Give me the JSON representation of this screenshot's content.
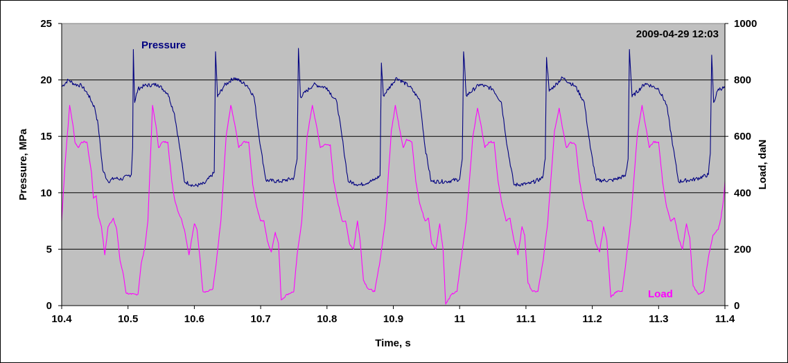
{
  "chart_data": {
    "type": "line",
    "timestamp": "2009-04-29 12:03",
    "xlabel": "Time, s",
    "ylabel_left": "Pressure, MPa",
    "ylabel_right": "Load, daN",
    "xlim": [
      10.4,
      11.4
    ],
    "ylim_left": [
      0,
      25
    ],
    "ylim_right": [
      0,
      1000
    ],
    "x_ticks": [
      "10.4",
      "10.5",
      "10.6",
      "10.7",
      "10.8",
      "10.9",
      "11",
      "11.1",
      "11.2",
      "11.3",
      "11.4"
    ],
    "y_left_ticks": [
      "0",
      "5",
      "10",
      "15",
      "20",
      "25"
    ],
    "y_right_ticks": [
      "0",
      "200",
      "400",
      "600",
      "800",
      "1000"
    ],
    "grid": "horizontal",
    "plot_background": "#c0c0c0",
    "series": [
      {
        "name": "Pressure",
        "axis": "left",
        "color": "#000080",
        "cycle_period_s": 0.1245,
        "points": [
          [
            10.4,
            19.4
          ],
          [
            10.41,
            20.0
          ],
          [
            10.42,
            19.6
          ],
          [
            10.43,
            19.5
          ],
          [
            10.44,
            18.7
          ],
          [
            10.45,
            17.5
          ],
          [
            10.455,
            16.0
          ],
          [
            10.462,
            12.0
          ],
          [
            10.47,
            11.0
          ],
          [
            10.48,
            11.3
          ],
          [
            10.49,
            11.2
          ],
          [
            10.5,
            11.5
          ],
          [
            10.505,
            11.6
          ],
          [
            10.507,
            14.0
          ],
          [
            10.508,
            22.7
          ],
          [
            10.51,
            18.0
          ],
          [
            10.515,
            19.2
          ],
          [
            10.525,
            19.5
          ],
          [
            10.545,
            19.6
          ],
          [
            10.56,
            18.8
          ],
          [
            10.57,
            17.0
          ],
          [
            10.578,
            14.0
          ],
          [
            10.585,
            11.0
          ],
          [
            10.6,
            10.6
          ],
          [
            10.615,
            10.8
          ],
          [
            10.63,
            11.8
          ],
          [
            10.632,
            22.5
          ],
          [
            10.635,
            18.5
          ],
          [
            10.645,
            19.5
          ],
          [
            10.66,
            20.2
          ],
          [
            10.68,
            19.5
          ],
          [
            10.69,
            18.5
          ],
          [
            10.7,
            14.0
          ],
          [
            10.708,
            11.1
          ],
          [
            10.73,
            11.0
          ],
          [
            10.75,
            11.3
          ],
          [
            10.755,
            13.0
          ],
          [
            10.757,
            22.8
          ],
          [
            10.76,
            18.5
          ],
          [
            10.78,
            19.6
          ],
          [
            10.8,
            19.3
          ],
          [
            10.815,
            18.0
          ],
          [
            10.825,
            14.0
          ],
          [
            10.832,
            11.0
          ],
          [
            10.85,
            10.7
          ],
          [
            10.87,
            11.1
          ],
          [
            10.88,
            11.5
          ],
          [
            10.882,
            21.5
          ],
          [
            10.885,
            18.6
          ],
          [
            10.905,
            20.2
          ],
          [
            10.925,
            19.4
          ],
          [
            10.94,
            18.2
          ],
          [
            10.948,
            14.0
          ],
          [
            10.957,
            11.0
          ],
          [
            10.98,
            11.0
          ],
          [
            11.0,
            11.2
          ],
          [
            11.004,
            13.0
          ],
          [
            11.006,
            22.5
          ],
          [
            11.01,
            18.6
          ],
          [
            11.03,
            19.6
          ],
          [
            11.05,
            19.2
          ],
          [
            11.063,
            18.0
          ],
          [
            11.072,
            14.0
          ],
          [
            11.082,
            10.7
          ],
          [
            11.105,
            10.8
          ],
          [
            11.125,
            11.3
          ],
          [
            11.129,
            13.0
          ],
          [
            11.131,
            22.0
          ],
          [
            11.135,
            19.0
          ],
          [
            11.155,
            20.2
          ],
          [
            11.175,
            19.4
          ],
          [
            11.188,
            18.0
          ],
          [
            11.197,
            14.0
          ],
          [
            11.206,
            11.1
          ],
          [
            11.23,
            11.1
          ],
          [
            11.25,
            11.5
          ],
          [
            11.254,
            13.0
          ],
          [
            11.256,
            22.7
          ],
          [
            11.26,
            18.5
          ],
          [
            11.28,
            19.7
          ],
          [
            11.3,
            19.2
          ],
          [
            11.312,
            17.8
          ],
          [
            11.322,
            14.0
          ],
          [
            11.33,
            11.0
          ],
          [
            11.355,
            11.2
          ],
          [
            11.375,
            11.6
          ],
          [
            11.378,
            13.5
          ],
          [
            11.38,
            22.2
          ],
          [
            11.383,
            18.0
          ],
          [
            11.39,
            19.2
          ],
          [
            11.4,
            19.3
          ]
        ]
      },
      {
        "name": "Load",
        "axis": "right",
        "color": "#ff00ff",
        "cycle_period_s": 0.1245,
        "points": [
          [
            10.4,
            300
          ],
          [
            10.405,
            500
          ],
          [
            10.412,
            710
          ],
          [
            10.417,
            640
          ],
          [
            10.42,
            580
          ],
          [
            10.425,
            560
          ],
          [
            10.43,
            580
          ],
          [
            10.438,
            580
          ],
          [
            10.445,
            470
          ],
          [
            10.448,
            380
          ],
          [
            10.452,
            390
          ],
          [
            10.455,
            320
          ],
          [
            10.46,
            280
          ],
          [
            10.465,
            180
          ],
          [
            10.47,
            280
          ],
          [
            10.478,
            310
          ],
          [
            10.483,
            270
          ],
          [
            10.488,
            160
          ],
          [
            10.493,
            110
          ],
          [
            10.497,
            45
          ],
          [
            10.505,
            40
          ],
          [
            10.515,
            40
          ],
          [
            10.52,
            150
          ],
          [
            10.525,
            200
          ],
          [
            10.53,
            300
          ],
          [
            10.537,
            710
          ],
          [
            10.542,
            640
          ],
          [
            10.546,
            560
          ],
          [
            10.552,
            580
          ],
          [
            10.56,
            580
          ],
          [
            10.566,
            440
          ],
          [
            10.57,
            380
          ],
          [
            10.576,
            330
          ],
          [
            10.58,
            310
          ],
          [
            10.585,
            270
          ],
          [
            10.592,
            180
          ],
          [
            10.6,
            290
          ],
          [
            10.604,
            270
          ],
          [
            10.608,
            180
          ],
          [
            10.613,
            50
          ],
          [
            10.62,
            50
          ],
          [
            10.628,
            60
          ],
          [
            10.633,
            150
          ],
          [
            10.64,
            300
          ],
          [
            10.648,
            600
          ],
          [
            10.655,
            710
          ],
          [
            10.662,
            630
          ],
          [
            10.667,
            560
          ],
          [
            10.674,
            580
          ],
          [
            10.682,
            580
          ],
          [
            10.688,
            430
          ],
          [
            10.694,
            350
          ],
          [
            10.7,
            300
          ],
          [
            10.705,
            300
          ],
          [
            10.71,
            230
          ],
          [
            10.716,
            190
          ],
          [
            10.722,
            260
          ],
          [
            10.727,
            220
          ],
          [
            10.731,
            20
          ],
          [
            10.74,
            40
          ],
          [
            10.75,
            50
          ],
          [
            10.755,
            180
          ],
          [
            10.762,
            300
          ],
          [
            10.77,
            600
          ],
          [
            10.778,
            710
          ],
          [
            10.784,
            640
          ],
          [
            10.79,
            560
          ],
          [
            10.796,
            570
          ],
          [
            10.805,
            570
          ],
          [
            10.81,
            440
          ],
          [
            10.816,
            370
          ],
          [
            10.823,
            300
          ],
          [
            10.828,
            300
          ],
          [
            10.834,
            220
          ],
          [
            10.84,
            200
          ],
          [
            10.846,
            300
          ],
          [
            10.85,
            230
          ],
          [
            10.855,
            90
          ],
          [
            10.862,
            60
          ],
          [
            10.872,
            50
          ],
          [
            10.88,
            160
          ],
          [
            10.888,
            300
          ],
          [
            10.897,
            620
          ],
          [
            10.903,
            710
          ],
          [
            10.91,
            620
          ],
          [
            10.915,
            560
          ],
          [
            10.92,
            590
          ],
          [
            10.928,
            580
          ],
          [
            10.934,
            440
          ],
          [
            10.94,
            360
          ],
          [
            10.948,
            300
          ],
          [
            10.953,
            310
          ],
          [
            10.958,
            220
          ],
          [
            10.964,
            200
          ],
          [
            10.97,
            290
          ],
          [
            10.975,
            200
          ],
          [
            10.979,
            5
          ],
          [
            10.988,
            40
          ],
          [
            10.996,
            50
          ],
          [
            11.002,
            160
          ],
          [
            11.01,
            300
          ],
          [
            11.02,
            600
          ],
          [
            11.027,
            700
          ],
          [
            11.033,
            630
          ],
          [
            11.038,
            560
          ],
          [
            11.044,
            580
          ],
          [
            11.052,
            580
          ],
          [
            11.058,
            440
          ],
          [
            11.064,
            360
          ],
          [
            11.07,
            300
          ],
          [
            11.076,
            310
          ],
          [
            11.082,
            230
          ],
          [
            11.088,
            180
          ],
          [
            11.094,
            280
          ],
          [
            11.098,
            250
          ],
          [
            11.103,
            80
          ],
          [
            11.11,
            50
          ],
          [
            11.118,
            50
          ],
          [
            11.126,
            160
          ],
          [
            11.133,
            300
          ],
          [
            11.143,
            620
          ],
          [
            11.15,
            700
          ],
          [
            11.156,
            620
          ],
          [
            11.161,
            560
          ],
          [
            11.167,
            580
          ],
          [
            11.175,
            570
          ],
          [
            11.181,
            440
          ],
          [
            11.187,
            360
          ],
          [
            11.193,
            300
          ],
          [
            11.199,
            300
          ],
          [
            11.205,
            220
          ],
          [
            11.211,
            190
          ],
          [
            11.217,
            280
          ],
          [
            11.222,
            230
          ],
          [
            11.228,
            30
          ],
          [
            11.236,
            50
          ],
          [
            11.245,
            50
          ],
          [
            11.251,
            160
          ],
          [
            11.258,
            300
          ],
          [
            11.268,
            610
          ],
          [
            11.275,
            710
          ],
          [
            11.281,
            630
          ],
          [
            11.286,
            560
          ],
          [
            11.292,
            580
          ],
          [
            11.3,
            580
          ],
          [
            11.306,
            440
          ],
          [
            11.312,
            350
          ],
          [
            11.318,
            300
          ],
          [
            11.324,
            310
          ],
          [
            11.33,
            240
          ],
          [
            11.336,
            200
          ],
          [
            11.342,
            290
          ],
          [
            11.347,
            240
          ],
          [
            11.352,
            70
          ],
          [
            11.36,
            40
          ],
          [
            11.368,
            50
          ],
          [
            11.375,
            170
          ],
          [
            11.382,
            250
          ],
          [
            11.39,
            270
          ],
          [
            11.394,
            310
          ],
          [
            11.398,
            380
          ],
          [
            11.4,
            440
          ]
        ]
      }
    ]
  }
}
